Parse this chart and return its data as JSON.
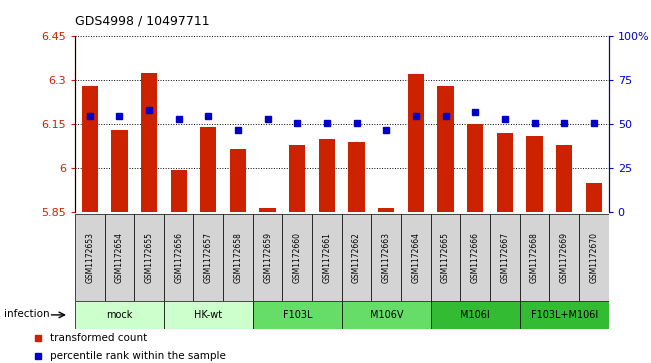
{
  "title": "GDS4998 / 10497711",
  "samples": [
    "GSM1172653",
    "GSM1172654",
    "GSM1172655",
    "GSM1172656",
    "GSM1172657",
    "GSM1172658",
    "GSM1172659",
    "GSM1172660",
    "GSM1172661",
    "GSM1172662",
    "GSM1172663",
    "GSM1172664",
    "GSM1172665",
    "GSM1172666",
    "GSM1172667",
    "GSM1172668",
    "GSM1172669",
    "GSM1172670"
  ],
  "bar_values": [
    6.28,
    6.13,
    6.325,
    5.995,
    6.14,
    6.065,
    5.865,
    6.08,
    6.1,
    6.09,
    5.865,
    6.32,
    6.28,
    6.15,
    6.12,
    6.11,
    6.08,
    5.95
  ],
  "dot_percentiles": [
    55,
    55,
    58,
    53,
    55,
    47,
    53,
    51,
    51,
    51,
    47,
    55,
    55,
    57,
    53,
    51,
    51,
    51
  ],
  "groups": [
    {
      "label": "mock",
      "start": 0,
      "end": 3,
      "color": "#ccffcc"
    },
    {
      "label": "HK-wt",
      "start": 3,
      "end": 6,
      "color": "#ccffcc"
    },
    {
      "label": "F103L",
      "start": 6,
      "end": 9,
      "color": "#66dd66"
    },
    {
      "label": "M106V",
      "start": 9,
      "end": 12,
      "color": "#66dd66"
    },
    {
      "label": "M106I",
      "start": 12,
      "end": 15,
      "color": "#33bb33"
    },
    {
      "label": "F103L+M106I",
      "start": 15,
      "end": 18,
      "color": "#33bb33"
    }
  ],
  "ylim_left": [
    5.85,
    6.45
  ],
  "ylim_right": [
    0,
    100
  ],
  "yticks_left": [
    5.85,
    6.0,
    6.15,
    6.3,
    6.45
  ],
  "yticks_right": [
    0,
    25,
    50,
    75,
    100
  ],
  "ytick_labels_left": [
    "5.85",
    "6",
    "6.15",
    "6.3",
    "6.45"
  ],
  "ytick_labels_right": [
    "0",
    "25",
    "50",
    "75",
    "100%"
  ],
  "bar_color": "#cc2200",
  "dot_color": "#0000cc",
  "infection_label": "infection",
  "legend_bar": "transformed count",
  "legend_dot": "percentile rank within the sample"
}
